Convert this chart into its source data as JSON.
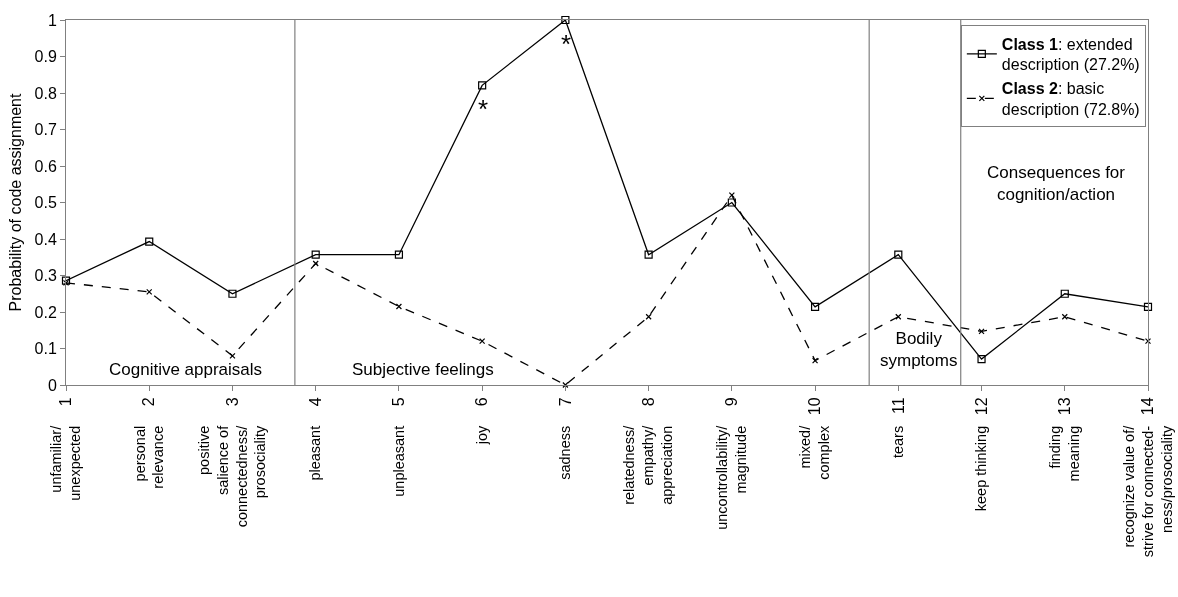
{
  "chart_data": {
    "type": "line",
    "ylabel": "Probability of code assignment",
    "categories": [
      "unfamiliar/\nunexpected",
      "personal\nrelevance",
      "positive\nsalience of\nconnectedness/\nprosociality",
      "pleasant",
      "unpleasant",
      "joy",
      "sadness",
      "relatedness/\nempathy/\nappreciation",
      "uncontrollability/\nmagnitude",
      "mixed/\ncomplex",
      "tears",
      "keep thinking",
      "finding\nmeaning",
      "recognize value of/\nstrive for connected-\nness/prosociality"
    ],
    "x2lim": [
      1,
      14
    ],
    "x2ticks": [
      1,
      2,
      3,
      4,
      5,
      6,
      7,
      8,
      9,
      10,
      11,
      12,
      13,
      14
    ],
    "ylim": [
      0,
      1
    ],
    "yticks": [
      0,
      0.1,
      0.2,
      0.3,
      0.4,
      0.5,
      0.6,
      0.7,
      0.8,
      0.9,
      1
    ],
    "series": [
      {
        "name": "Class 1: extended description (27.2%)",
        "color": "#000000",
        "marker": "square",
        "line_style": "solid",
        "values": [
          0.286,
          0.393,
          0.25,
          0.357,
          0.357,
          0.821,
          1.0,
          0.357,
          0.5,
          0.214,
          0.357,
          0.071,
          0.25,
          0.214
        ]
      },
      {
        "name": "Class 2: basic description (72.8%)",
        "color": "#000000",
        "marker": "cross",
        "line_style": "dashed",
        "values": [
          0.28,
          0.255,
          0.08,
          0.333,
          0.215,
          0.12,
          0,
          0.187,
          0.52,
          0.067,
          0.187,
          0.147,
          0.187,
          0.12
        ]
      }
    ],
    "ref_lines": [
      {
        "axis": "x2",
        "value": 3.75,
        "color": "#808080"
      },
      {
        "axis": "x2",
        "value": 10.65,
        "color": "#808080"
      },
      {
        "axis": "x2",
        "value": 11.75,
        "color": "#808080"
      }
    ],
    "annotations": [
      {
        "text": "*",
        "x": "joy",
        "y": 0.821
      },
      {
        "text": "*",
        "x": "sadness",
        "y": 1.0
      },
      "Cognitive appraisals",
      "Subjective feelings",
      "Bodily\nsymptoms",
      "Consequences for\ncognition/action"
    ],
    "grid": false,
    "legend": "top right"
  }
}
